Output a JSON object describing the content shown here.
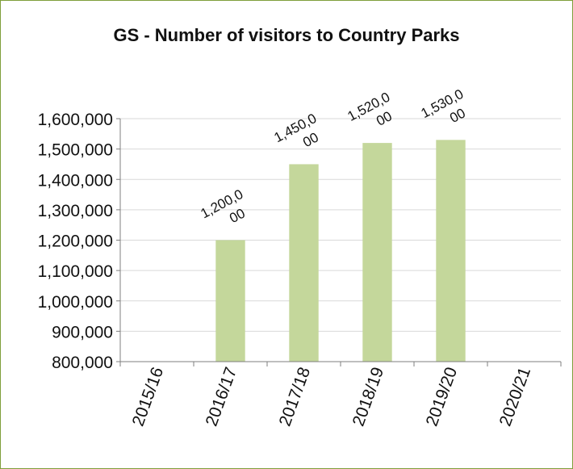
{
  "chart_data": {
    "type": "bar",
    "title": "GS - Number of visitors to Country Parks",
    "xlabel": "",
    "ylabel": "",
    "categories": [
      "2015/16",
      "2016/17",
      "2017/18",
      "2018/19",
      "2019/20",
      "2020/21"
    ],
    "values": [
      null,
      1200000,
      1450000,
      1520000,
      1530000,
      null
    ],
    "data_labels": [
      "",
      "1,200,000",
      "1,450,000",
      "1,520,000",
      "1,530,000",
      ""
    ],
    "ylim": [
      800000,
      1600000
    ],
    "yticks": [
      800000,
      900000,
      1000000,
      1100000,
      1200000,
      1300000,
      1400000,
      1500000,
      1600000
    ],
    "ytick_labels": [
      "800,000",
      "900,000",
      "1,000,000",
      "1,100,000",
      "1,200,000",
      "1,300,000",
      "1,400,000",
      "1,500,000",
      "1,600,000"
    ],
    "grid": true,
    "legend": "none",
    "colors": {
      "bar": "#c4d79b",
      "grid": "#d9d9d9",
      "axis": "#7f7f7f",
      "border": "#7f9f3a",
      "text": "#111111"
    }
  }
}
